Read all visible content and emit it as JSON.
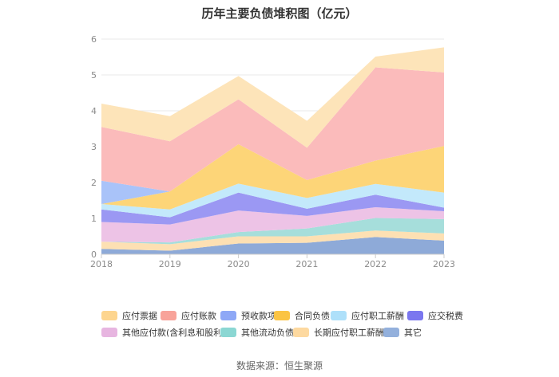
{
  "chart_data": {
    "type": "area",
    "stacked": true,
    "title": "历年主要负债堆积图（亿元）",
    "x": [
      "2018",
      "2019",
      "2020",
      "2021",
      "2022",
      "2023"
    ],
    "ylim": [
      0,
      6
    ],
    "yticks": [
      0,
      1,
      2,
      3,
      4,
      5,
      6
    ],
    "legend_position": "bottom",
    "grid": true,
    "series": [
      {
        "name": "其它",
        "color": "#8eaad8",
        "values": [
          0.15,
          0.1,
          0.3,
          0.32,
          0.48,
          0.38
        ]
      },
      {
        "name": "长期应付职工薪酬",
        "color": "#fde0b3",
        "values": [
          0.2,
          0.18,
          0.2,
          0.18,
          0.18,
          0.2
        ]
      },
      {
        "name": "其他流动负债",
        "color": "#a6dedb",
        "values": [
          0.0,
          0.05,
          0.12,
          0.22,
          0.35,
          0.4
        ]
      },
      {
        "name": "其他应付款(含利息和股利)",
        "color": "#edc3e6",
        "values": [
          0.55,
          0.5,
          0.6,
          0.35,
          0.3,
          0.22
        ]
      },
      {
        "name": "应交税费",
        "color": "#9b98f3",
        "values": [
          0.35,
          0.2,
          0.5,
          0.2,
          0.35,
          0.1
        ]
      },
      {
        "name": "应付职工薪酬",
        "color": "#c3e9fb",
        "values": [
          0.15,
          0.22,
          0.25,
          0.3,
          0.3,
          0.42
        ]
      },
      {
        "name": "合同负债",
        "color": "#fdd578",
        "values": [
          0.0,
          0.5,
          1.1,
          0.5,
          0.65,
          1.3
        ]
      },
      {
        "name": "预收款项",
        "color": "#a9c3f9",
        "values": [
          0.65,
          0.0,
          0.0,
          0.0,
          0.0,
          0.0
        ]
      },
      {
        "name": "应付账款",
        "color": "#fbbbbb",
        "values": [
          1.5,
          1.4,
          1.25,
          0.9,
          2.6,
          2.05
        ]
      },
      {
        "name": "应付票据",
        "color": "#fde4b9",
        "values": [
          0.65,
          0.7,
          0.65,
          0.75,
          0.3,
          0.7
        ]
      }
    ],
    "legend": [
      {
        "name": "应付票据",
        "color": "#fdd58f"
      },
      {
        "name": "应付账款",
        "color": "#f8a39a"
      },
      {
        "name": "预收款项",
        "color": "#8ea8f6"
      },
      {
        "name": "合同负债",
        "color": "#fbc444"
      },
      {
        "name": "应付职工薪酬",
        "color": "#aee0fa"
      },
      {
        "name": "应交税费",
        "color": "#7b77ef"
      },
      {
        "name": "其他应付款(含利息和股利)",
        "color": "#e7b5e0"
      },
      {
        "name": "其他流动负债",
        "color": "#8bd7d3"
      },
      {
        "name": "长期应付职工薪酬",
        "color": "#fdd9a0"
      },
      {
        "name": "其它",
        "color": "#93b0dc"
      }
    ]
  },
  "footer": {
    "source": "数据来源：恒生聚源"
  }
}
